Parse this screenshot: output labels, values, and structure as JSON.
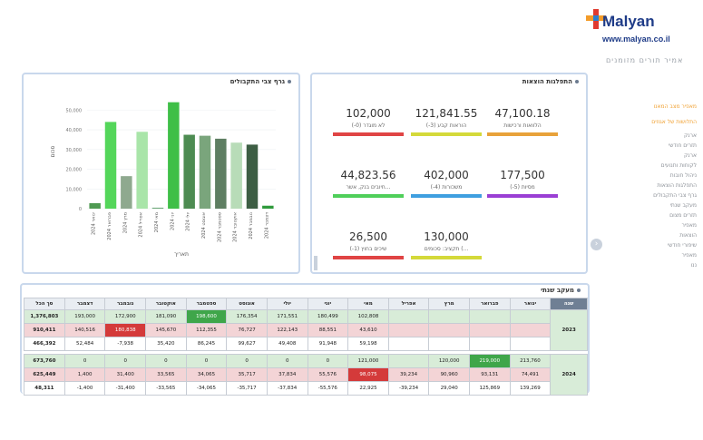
{
  "brand": {
    "name": "Malyan",
    "url": "www.malyan.co.il",
    "tagline": "אמיר תורים מזומנים"
  },
  "menu": [
    {
      "label": "מאפיר מצב המאנו",
      "active": true
    },
    {
      "label": "התלושות של אגוזים",
      "active": true
    },
    {
      "label": "ארנק",
      "active": false
    },
    {
      "label": "תזרים חודשי",
      "active": false
    },
    {
      "label": "ארנק",
      "active": false
    },
    {
      "label": "לקוחות ותנועים",
      "active": false
    },
    {
      "label": "ניהול חובות",
      "active": false
    },
    {
      "label": "התפלגות הוצאות",
      "active": false
    },
    {
      "label": "גרף צבי התקבולים",
      "active": false
    },
    {
      "label": "מעקב שנתי",
      "active": false
    },
    {
      "label": "תזרים מצום",
      "active": false
    },
    {
      "label": "מאפיר",
      "active": false
    },
    {
      "label": "הוצאות",
      "active": false
    },
    {
      "label": "שיפורי חודשי",
      "active": false
    },
    {
      "label": "מאפיר",
      "active": false
    },
    {
      "label": "ננו",
      "active": false
    }
  ],
  "chart_panel": {
    "title": "גרף צבי התקבולים",
    "xlabel": "תאריך",
    "ylabel": "סכום"
  },
  "chart_data": {
    "type": "bar",
    "categories": [
      "ינואר 2024",
      "פברואר 2024",
      "מרץ 2024",
      "אפריל 2024",
      "מאי 2024",
      "יוני 2024",
      "יולי 2024",
      "אוגוסט 2024",
      "ספטמבר 2024",
      "אוקטובר 2024",
      "נובמבר 2024",
      "דצמבר 2024"
    ],
    "values": [
      2800,
      44000,
      16500,
      39000,
      500,
      54000,
      37500,
      37000,
      35500,
      33500,
      32500,
      1500
    ],
    "colors": [
      "#4f9a52",
      "#54d65a",
      "#8fa98f",
      "#a9e5a9",
      "#6fa87a",
      "#3fbf47",
      "#4d8c52",
      "#7aa57c",
      "#5e7e62",
      "#b8dcb8",
      "#3d5e44",
      "#2f9a3c"
    ],
    "yticks": [
      0,
      10000,
      20000,
      30000,
      40000,
      50000
    ],
    "ytick_labels": [
      "0",
      "10,000",
      "20,000",
      "30,000",
      "40,000",
      "50,000"
    ],
    "ylim": [
      0,
      58000
    ]
  },
  "expenses": {
    "title": "התפלגות הוצאות",
    "cards": [
      {
        "value": "47,100.18",
        "label": "הלוואות ורכישות",
        "color": "#e8a23a"
      },
      {
        "value": "121,841.55",
        "label": "הוראות קבע (3-)",
        "color": "#d4d93a"
      },
      {
        "value": "102,000",
        "label": "לא מוגדר (0-)",
        "color": "#e04444"
      },
      {
        "value": "177,500",
        "label": "מסיות (5-)",
        "color": "#9a3fd4"
      },
      {
        "value": "402,000",
        "label": "משכורות (4-)",
        "color": "#3f9fe0"
      },
      {
        "value": "44,823.56",
        "label": "חיובים בנק, אשר...",
        "color": "#4fcf5a"
      },
      {
        "value": "130,000",
        "label": "תקציב: סכומים (...",
        "color": "#d4d93a"
      },
      {
        "value": "26,500",
        "label": "שיכים בחוץ (1-)",
        "color": "#e04444"
      }
    ]
  },
  "tracker": {
    "title": "מעקב שנתי",
    "headers": [
      "שנה",
      "ינואר",
      "פברואר",
      "מרץ",
      "אפריל",
      "מאי",
      "יוני",
      "יולי",
      "אוגוסט",
      "ספטמבר",
      "אוקטובר",
      "נובמבר",
      "דצמבר",
      "סך הכל"
    ],
    "years": [
      {
        "year": "2023",
        "rows": [
          {
            "cls": "rg",
            "cells": [
              "",
              "",
              "",
              "",
              "102,808",
              "180,499",
              "171,551",
              "176,354",
              "198,600",
              "181,090",
              "172,900",
              "193,000",
              "1,376,803"
            ],
            "hl": [
              8
            ]
          },
          {
            "cls": "rr",
            "cells": [
              "",
              "",
              "",
              "",
              "43,610",
              "88,551",
              "122,143",
              "76,727",
              "112,355",
              "145,670",
              "180,838",
              "140,516",
              "910,411"
            ],
            "hlr": [
              10
            ]
          },
          {
            "cls": "rw",
            "cells": [
              "",
              "",
              "",
              "",
              "59,198",
              "91,948",
              "49,408",
              "99,627",
              "86,245",
              "35,420",
              "-7,938",
              "52,484",
              "466,392"
            ]
          }
        ]
      },
      {
        "year": "2024",
        "rows": [
          {
            "cls": "rg",
            "cells": [
              "213,760",
              "219,000",
              "120,000",
              "",
              "121,000",
              "0",
              "0",
              "0",
              "0",
              "0",
              "0",
              "0",
              "673,760"
            ],
            "hl": [
              1
            ]
          },
          {
            "cls": "rr",
            "cells": [
              "74,491",
              "93,131",
              "90,960",
              "39,234",
              "98,075",
              "55,576",
              "37,834",
              "35,717",
              "34,065",
              "33,565",
              "31,400",
              "1,400",
              "625,449"
            ],
            "hlr": [
              4
            ]
          },
          {
            "cls": "rw",
            "cells": [
              "139,269",
              "125,869",
              "29,040",
              "-39,234",
              "22,925",
              "-55,576",
              "-37,834",
              "-35,717",
              "-34,065",
              "-33,565",
              "-31,400",
              "-1,400",
              "48,311"
            ]
          }
        ]
      }
    ]
  }
}
